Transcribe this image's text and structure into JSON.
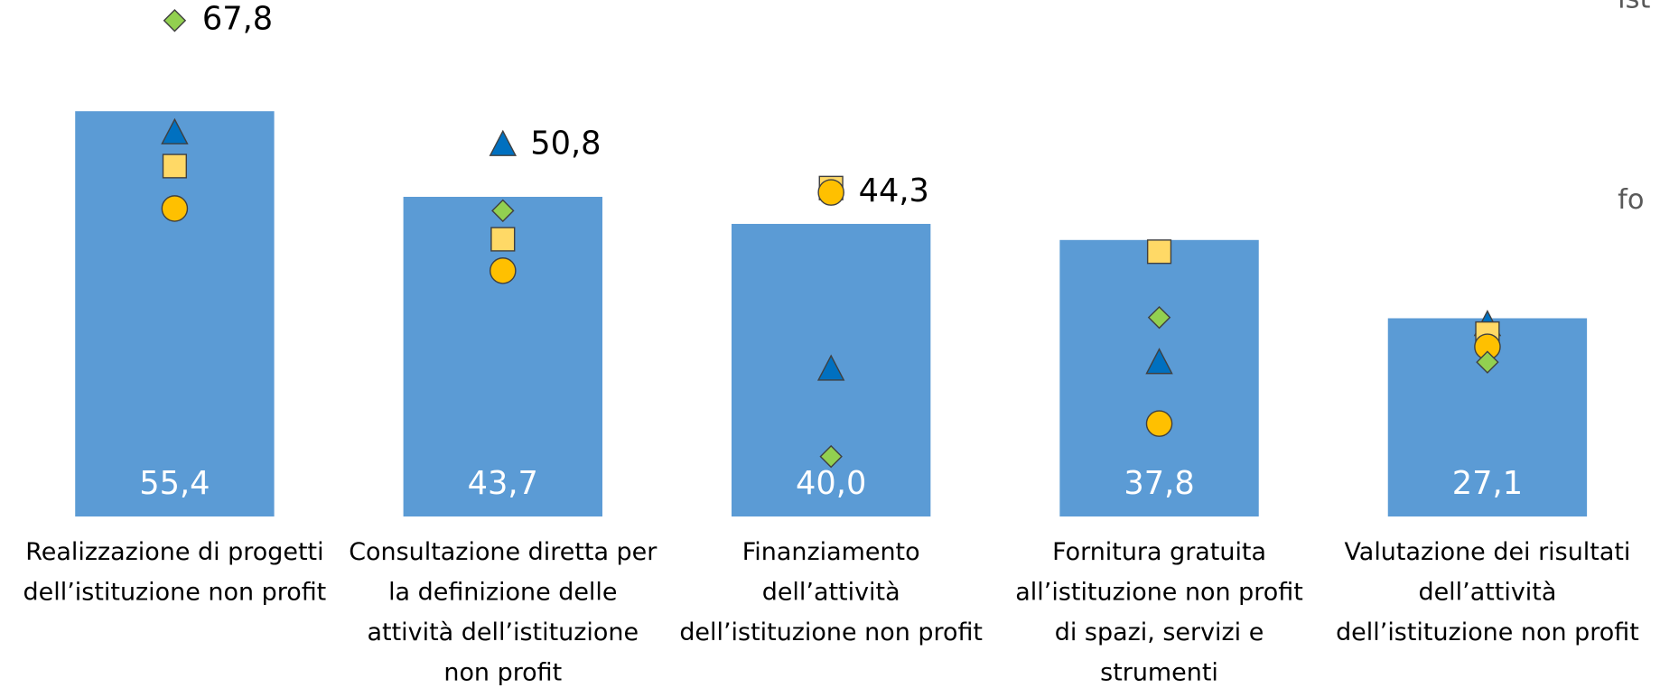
{
  "chart_data": {
    "type": "bar",
    "categories": [
      [
        "Realizzazione di progetti",
        "dell’istituzione non profit"
      ],
      [
        "Consultazione diretta per",
        "la definizione delle",
        "attività dell’istituzione",
        "non profit"
      ],
      [
        "Finanziamento",
        "dell’attività",
        "dell’istituzione non profit"
      ],
      [
        "Fornitura gratuita",
        "all’istituzione non profit",
        "di spazi, servizi e",
        "strumenti"
      ],
      [
        "Valutazione dei risultati",
        "dell’attività",
        "dell’istituzione non profit"
      ]
    ],
    "values": [
      55.4,
      43.7,
      40.0,
      37.8,
      27.1
    ],
    "value_labels": [
      "55,4",
      "43,7",
      "40,0",
      "37,8",
      "27,1"
    ],
    "color": "#5b9bd5",
    "ylim": [
      0,
      70.6
    ],
    "markers": [
      {
        "marker": "triangle",
        "color": "#0070c0",
        "values": [
          52.4,
          50.8,
          20.1,
          21.0,
          26.2
        ],
        "value_labels": [
          null,
          "50,8",
          null,
          null,
          null
        ]
      },
      {
        "marker": "square",
        "color": "#ffd966",
        "values": [
          47.9,
          37.9,
          44.9,
          36.2,
          25.0
        ],
        "value_labels": [
          null,
          null,
          null,
          null,
          null
        ]
      },
      {
        "marker": "circle",
        "color": "#ffc000",
        "values": [
          42.1,
          33.6,
          44.3,
          12.7,
          23.2
        ],
        "value_labels": [
          null,
          null,
          "44,3",
          null,
          null
        ]
      },
      {
        "marker": "diamond",
        "color": "#92d050",
        "values": [
          67.8,
          41.8,
          8.2,
          27.2,
          21.1
        ],
        "value_labels": [
          "67,8",
          null,
          null,
          null,
          null
        ]
      }
    ],
    "annotations": [
      "ist",
      "fo"
    ]
  }
}
